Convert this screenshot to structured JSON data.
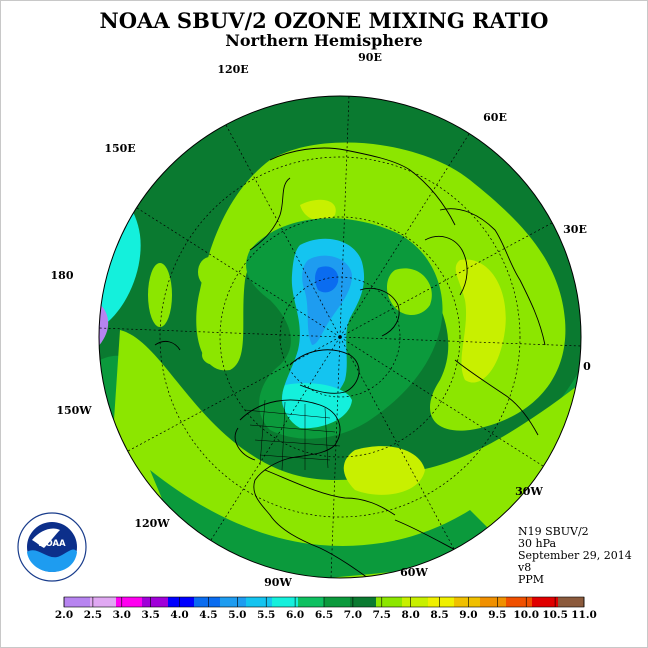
{
  "title": "NOAA SBUV/2 OZONE MIXING RATIO",
  "subtitle": "Northern Hemisphere",
  "longitude_labels": [
    "90E",
    "60E",
    "30E",
    "0",
    "30W",
    "60W",
    "90W",
    "120W",
    "150W",
    "180",
    "150E",
    "120E"
  ],
  "info": {
    "satellite": "N19 SBUV/2",
    "level": "30 hPa",
    "date": "September 29, 2014",
    "version": "v8",
    "units": "PPM"
  },
  "colorbar": {
    "ticks": [
      "2.0",
      "2.5",
      "3.0",
      "3.5",
      "4.0",
      "4.5",
      "5.0",
      "5.5",
      "6.0",
      "6.5",
      "7.0",
      "7.5",
      "8.0",
      "8.5",
      "9.0",
      "9.5",
      "10.0",
      "10.5",
      "11.0"
    ],
    "colors": [
      "#b784f0",
      "#e0a8f2",
      "#ff00f0",
      "#a000d8",
      "#0000ff",
      "#0a6cf0",
      "#1e9cf0",
      "#14c4f0",
      "#14f0dc",
      "#0ec060",
      "#0b9a3c",
      "#0a7a30",
      "#8ce600",
      "#c8f000",
      "#f0f000",
      "#f0c000",
      "#f09000",
      "#f05000",
      "#e00000",
      "#8b5a3c"
    ]
  },
  "colors": {
    "land_outline": "#000000",
    "grid": "#000000"
  }
}
